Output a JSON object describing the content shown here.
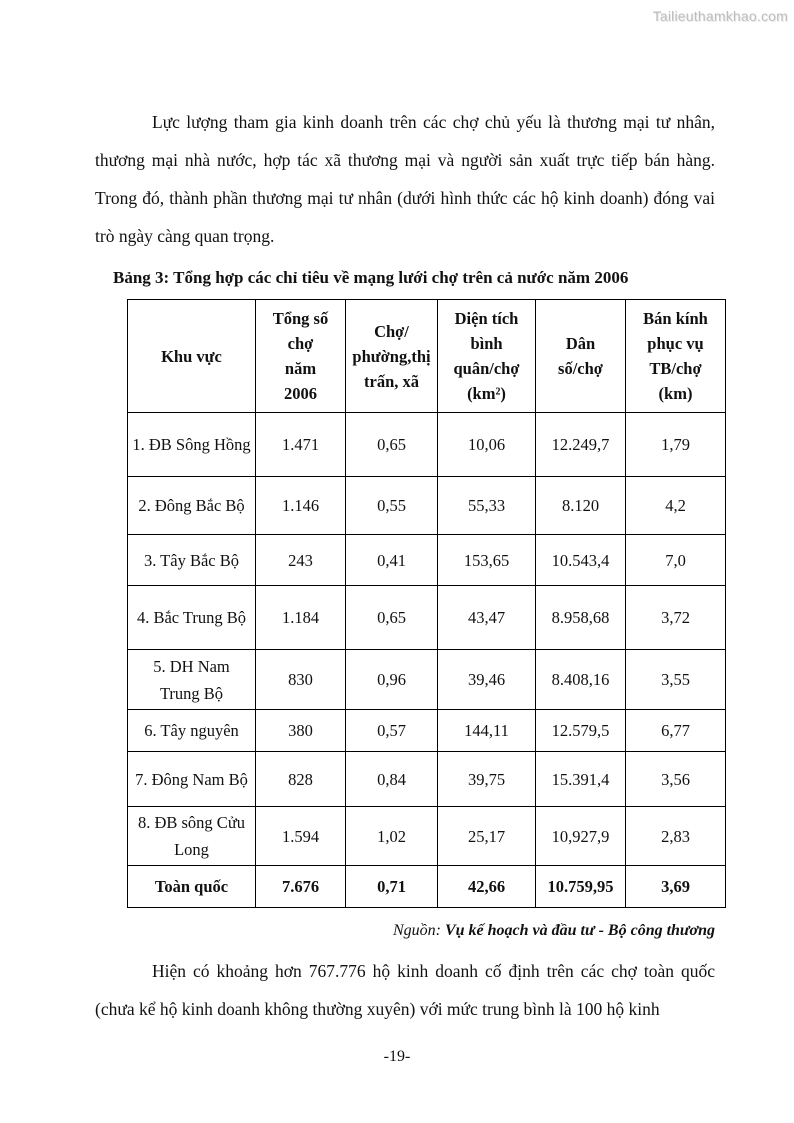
{
  "watermark": "Tailieuthamkhao.com",
  "paragraph1": "Lực lượng tham gia kinh doanh trên các chợ chủ yếu là thương mại tư nhân, thương mại nhà nước, hợp tác xã  thương mại và người sản xuất trực tiếp bán hàng. Trong đó, thành phần thương mại tư nhân (dưới hình thức các hộ kinh doanh) đóng vai trò ngày càng quan trọng.",
  "table": {
    "caption": "Bảng 3:  Tổng hợp các chỉ tiêu về mạng lưới chợ trên cả nước năm 2006",
    "headers": [
      "Khu vực",
      "Tổng số\nchợ\nnăm\n2006",
      "Chợ/\nphường,thị\ntrấn, xã",
      "Diện tích\nbình\nquân/chợ\n(km²)",
      "Dân\nsố/chợ",
      "Bán kính\nphục vụ\nTB/chợ\n(km)"
    ],
    "rows": [
      {
        "region": "1. ĐB Sông Hồng",
        "total": "1.471",
        "per_ward": "0,65",
        "area": "10,06",
        "pop": "12.249,7",
        "radius": "1,79"
      },
      {
        "region": "2. Đông Bắc Bộ",
        "total": "1.146",
        "per_ward": "0,55",
        "area": "55,33",
        "pop": "8.120",
        "radius": "4,2"
      },
      {
        "region": "3. Tây Bắc Bộ",
        "total": "243",
        "per_ward": "0,41",
        "area": "153,65",
        "pop": "10.543,4",
        "radius": "7,0"
      },
      {
        "region": "4. Bắc Trung Bộ",
        "total": "1.184",
        "per_ward": "0,65",
        "area": "43,47",
        "pop": "8.958,68",
        "radius": "3,72"
      },
      {
        "region": "5. DH Nam Trung Bộ",
        "total": "830",
        "per_ward": "0,96",
        "area": "39,46",
        "pop": "8.408,16",
        "radius": "3,55"
      },
      {
        "region": "6. Tây nguyên",
        "total": "380",
        "per_ward": "0,57",
        "area": "144,11",
        "pop": "12.579,5",
        "radius": "6,77"
      },
      {
        "region": "7. Đông Nam Bộ",
        "total": "828",
        "per_ward": "0,84",
        "area": "39,75",
        "pop": "15.391,4",
        "radius": "3,56"
      },
      {
        "region": "8. ĐB sông Cửu Long",
        "total": "1.594",
        "per_ward": "1,02",
        "area": "25,17",
        "pop": "10,927,9",
        "radius": "2,83"
      }
    ],
    "total_row": {
      "region": "Toàn quốc",
      "total": "7.676",
      "per_ward": "0,71",
      "area": "42,66",
      "pop": "10.759,95",
      "radius": "3,69"
    }
  },
  "source": {
    "prefix": "Nguồn: ",
    "text": "Vụ kế hoạch và đầu tư - Bộ công thương"
  },
  "paragraph2": "Hiện có khoảng hơn 767.776 hộ kinh doanh cố định trên các chợ toàn quốc (chưa kể hộ kinh doanh không thường xuyên) với mức trung bình là 100 hộ kinh",
  "page_number": "-19-"
}
